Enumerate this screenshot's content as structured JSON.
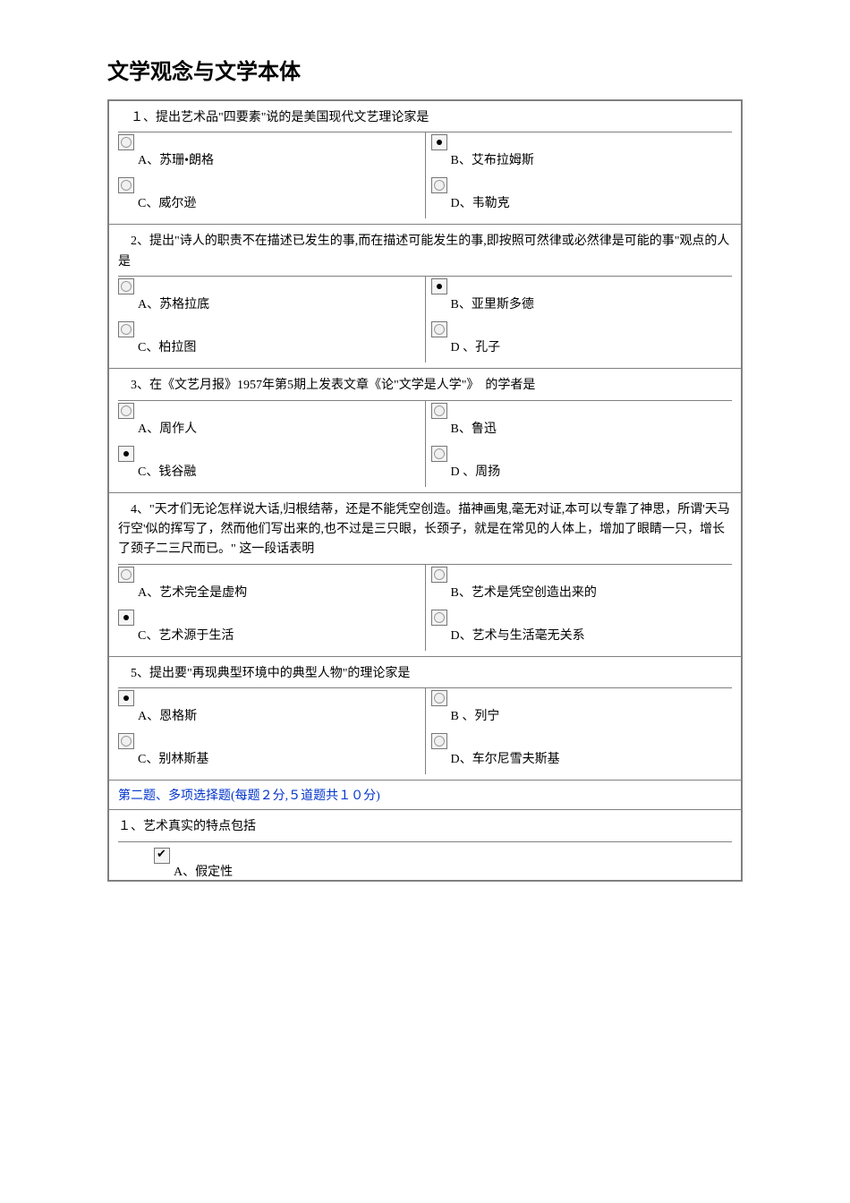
{
  "title": "文学观念与文学本体",
  "questions": [
    {
      "num": "１、",
      "text": "提出艺术品\"四要素\"说的是美国现代文艺理论家是",
      "opts": [
        {
          "letter": "A、",
          "label": "苏珊•朗格",
          "sel": false
        },
        {
          "letter": "B、",
          "label": "艾布拉姆斯",
          "sel": true
        },
        {
          "letter": "C、",
          "label": "威尔逊",
          "sel": false
        },
        {
          "letter": "D、",
          "label": "韦勒克",
          "sel": false
        }
      ]
    },
    {
      "num": "2、",
      "text": "提出\"诗人的职责不在描述已发生的事,而在描述可能发生的事,即按照可然律或必然律是可能的事\"观点的人是",
      "opts": [
        {
          "letter": "A、",
          "label": "苏格拉底",
          "sel": false
        },
        {
          "letter": "B、",
          "label": "亚里斯多德",
          "sel": true
        },
        {
          "letter": "C、",
          "label": "柏拉图",
          "sel": false
        },
        {
          "letter": "D 、",
          "label": "孔子",
          "sel": false
        }
      ]
    },
    {
      "num": "3、",
      "text": "在《文艺月报》1957年第5期上发表文章《论\"文学是人学\"》　的学者是",
      "opts": [
        {
          "letter": "A、",
          "label": "周作人",
          "sel": false
        },
        {
          "letter": "B、",
          "label": "鲁迅",
          "sel": false
        },
        {
          "letter": "C、",
          "label": "钱谷融",
          "sel": true
        },
        {
          "letter": "D 、",
          "label": "周扬",
          "sel": false
        }
      ]
    },
    {
      "num": "4、",
      "text": "\"天才们无论怎样说大话,归根结蒂，还是不能凭空创造。描神画鬼,毫无对证,本可以专靠了神思，所谓'天马行空'似的挥写了，然而他们写出来的,也不过是三只眼，长颈子，就是在常见的人体上，增加了眼睛一只，增长了颈子二三尺而已。\" 这一段话表明",
      "opts": [
        {
          "letter": "A、",
          "label": "艺术完全是虚构",
          "sel": false
        },
        {
          "letter": "B、",
          "label": "艺术是凭空创造出来的",
          "sel": false
        },
        {
          "letter": "C、",
          "label": "艺术源于生活",
          "sel": true
        },
        {
          "letter": "D、",
          "label": "艺术与生活毫无关系",
          "sel": false
        }
      ]
    },
    {
      "num": "5、",
      "text": "提出要\"再现典型环境中的典型人物\"的理论家是",
      "opts": [
        {
          "letter": "A、",
          "label": "恩格斯",
          "sel": true
        },
        {
          "letter": "B 、",
          "label": "列宁",
          "sel": false
        },
        {
          "letter": "C、",
          "label": "别林斯基",
          "sel": false
        },
        {
          "letter": "D、",
          "label": "车尔尼雪夫斯基",
          "sel": false
        }
      ]
    }
  ],
  "section2": {
    "header": "第二题、多项选择题(每题２分,５道题共１０分)",
    "q1": {
      "num": "１、",
      "text": "艺术真实的特点包括",
      "opt": {
        "letter": "A、",
        "label": "假定性",
        "checked": true
      }
    }
  }
}
